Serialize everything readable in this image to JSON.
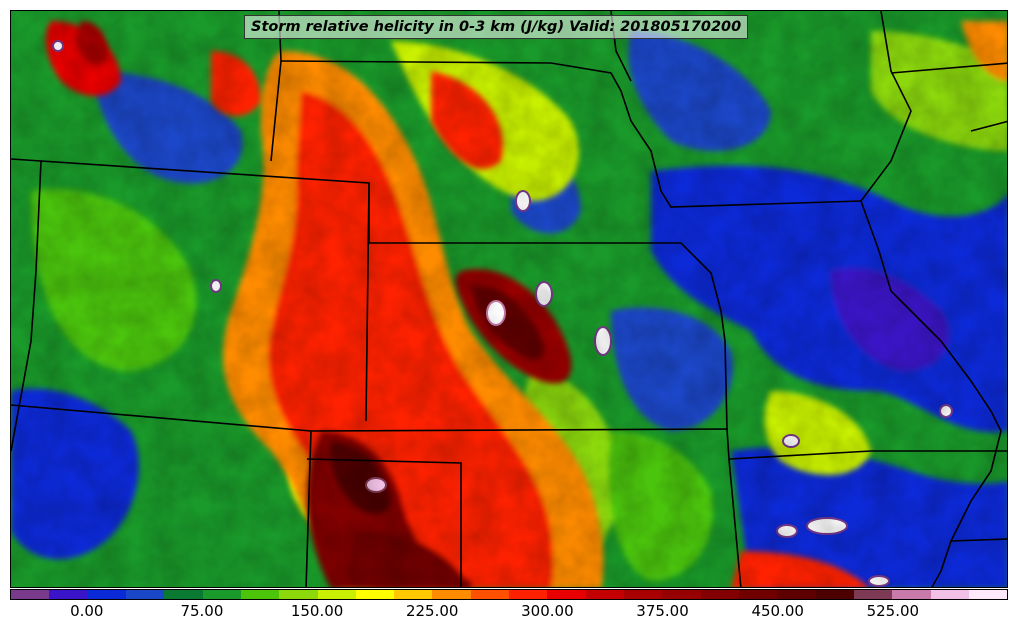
{
  "map": {
    "title": "Storm relative helicity in 0-3 km (J/kg) Valid: 201805170200",
    "field": "Storm relative helicity 0-3 km",
    "units": "J/kg",
    "valid_time": "201805170200",
    "region": "Central United States (Plains / Midwest)",
    "boundaries": "state borders in black"
  },
  "colorbar": {
    "vmin": -50,
    "vmax": 600,
    "step": 25,
    "tick_labels": [
      "0.00",
      "75.00",
      "150.00",
      "225.00",
      "300.00",
      "375.00",
      "450.00",
      "525.00"
    ],
    "tick_values": [
      0,
      75,
      150,
      225,
      300,
      375,
      450,
      525
    ],
    "colors": [
      "#7a3a8c",
      "#3a14c8",
      "#0a2ad8",
      "#1a46c8",
      "#0a7a32",
      "#1a9a2a",
      "#4cc40a",
      "#8cd80a",
      "#c8f000",
      "#ffff00",
      "#ffc800",
      "#ff8c00",
      "#ff5000",
      "#ff2000",
      "#e80000",
      "#c40000",
      "#a80000",
      "#960000",
      "#820000",
      "#700000",
      "#5e0000",
      "#4c0000",
      "#7e3a55",
      "#c87aaa",
      "#f0c0e6",
      "#ffe8fa"
    ]
  },
  "colors": {
    "background": "#0a7a32",
    "state_lines": "#000000"
  }
}
